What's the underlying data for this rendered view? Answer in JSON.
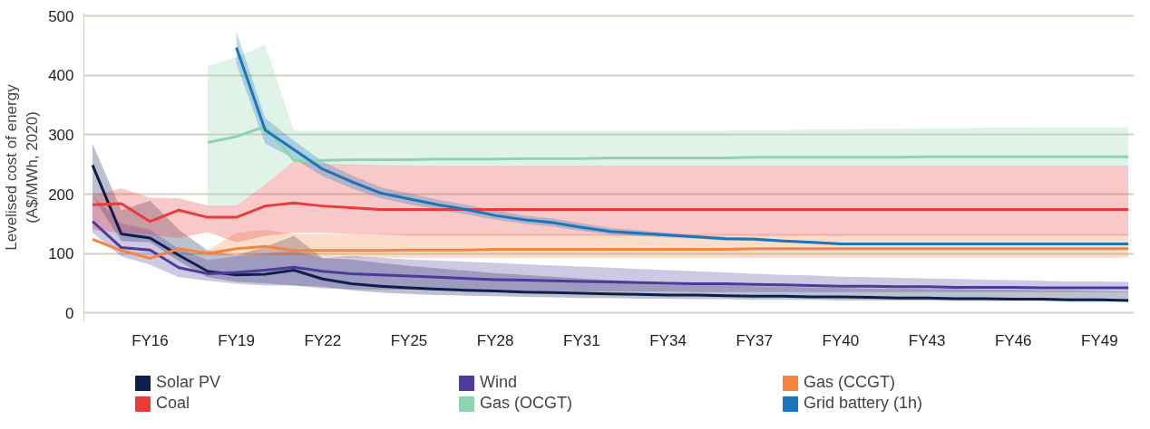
{
  "chart_data": {
    "type": "line",
    "ylabel": "Levelised cost of energy\n(A$/MWh, 2020)",
    "categories": [
      null,
      null,
      "FY16",
      null,
      null,
      "FY19",
      null,
      null,
      "FY22",
      null,
      null,
      "FY25",
      null,
      null,
      "FY28",
      null,
      null,
      "FY31",
      null,
      null,
      "FY34",
      null,
      null,
      "FY37",
      null,
      null,
      "FY40",
      null,
      null,
      "FY43",
      null,
      null,
      "FY46",
      null,
      null,
      "FY49",
      null
    ],
    "ylim": [
      -15,
      505
    ],
    "yticks": [
      0,
      100,
      200,
      300,
      400,
      500
    ],
    "grid": "y",
    "legend": "bottom",
    "marker": "none",
    "line_style": "solid",
    "series": [
      {
        "name": "Solar PV",
        "color": "#0d1f4d",
        "values": [
          249,
          133,
          126,
          97,
          70,
          64,
          65,
          72,
          57,
          49,
          45,
          42,
          40,
          38,
          37,
          35,
          34,
          33,
          32,
          31,
          30,
          30,
          29,
          28,
          28,
          27,
          27,
          26,
          25,
          25,
          24,
          24,
          23,
          23,
          22,
          22,
          21
        ],
        "lower": [
          197,
          121,
          119,
          87,
          60,
          52,
          50,
          46,
          44,
          38,
          34,
          32,
          30,
          29,
          28,
          27,
          26,
          25,
          25,
          24,
          24,
          23,
          23,
          22,
          22,
          22,
          21,
          21,
          21,
          21,
          20,
          20,
          20,
          20,
          19,
          19,
          19
        ],
        "upper": [
          285,
          173,
          189,
          140,
          105,
          97,
          111,
          130,
          92,
          90,
          84,
          79,
          75,
          71,
          67,
          64,
          61,
          58,
          55,
          53,
          51,
          49,
          47,
          45,
          44,
          43,
          42,
          41,
          41,
          40,
          40,
          39,
          39,
          38,
          38,
          37,
          36
        ]
      },
      {
        "name": "Wind",
        "color": "#4f3a9a",
        "values": [
          154,
          110,
          106,
          76,
          66,
          68,
          72,
          77,
          70,
          66,
          64,
          62,
          60,
          58,
          56,
          55,
          54,
          53,
          52,
          51,
          50,
          49,
          49,
          48,
          47,
          46,
          45,
          45,
          44,
          44,
          43,
          43,
          43,
          42,
          42,
          42,
          42
        ],
        "lower": [
          135,
          95,
          81,
          60,
          54,
          49,
          46,
          46,
          41,
          40,
          39,
          39,
          38,
          38,
          37,
          37,
          37,
          36,
          36,
          36,
          36,
          35,
          35,
          35,
          35,
          35,
          35,
          35,
          35,
          35,
          35,
          35,
          35,
          35,
          35,
          35,
          35
        ],
        "upper": [
          197,
          151,
          140,
          108,
          89,
          95,
          100,
          105,
          92,
          96,
          93,
          90,
          88,
          86,
          84,
          82,
          80,
          78,
          76,
          74,
          72,
          70,
          68,
          66,
          64,
          63,
          61,
          60,
          59,
          58,
          57,
          56,
          55,
          54,
          53,
          53,
          52
        ]
      },
      {
        "name": "Gas (CCGT)",
        "color": "#f5843f",
        "values": [
          124,
          105,
          92,
          108,
          100,
          108,
          112,
          105,
          105,
          105,
          105,
          106,
          106,
          106,
          107,
          107,
          107,
          107,
          107,
          107,
          107,
          107,
          107,
          108,
          108,
          108,
          108,
          108,
          108,
          108,
          108,
          108,
          108,
          108,
          108,
          108,
          108
        ],
        "lower": [
          null,
          null,
          null,
          null,
          97,
          95,
          95,
          94,
          93,
          93,
          93,
          93,
          93,
          93,
          93,
          93,
          93,
          93,
          93,
          93,
          93,
          93,
          93,
          93,
          93,
          93,
          93,
          93,
          93,
          93,
          93,
          93,
          93,
          93,
          93,
          93,
          93
        ],
        "upper": [
          null,
          null,
          null,
          null,
          105,
          135,
          140,
          133,
          133,
          133,
          133,
          133,
          133,
          133,
          133,
          133,
          133,
          133,
          133,
          133,
          133,
          133,
          133,
          133,
          133,
          133,
          133,
          133,
          133,
          133,
          133,
          133,
          133,
          133,
          133,
          133,
          133
        ]
      },
      {
        "name": "Coal",
        "color": "#ea3a3c",
        "values": [
          182,
          184,
          154,
          173,
          161,
          161,
          180,
          185,
          180,
          177,
          174,
          174,
          174,
          174,
          174,
          174,
          174,
          174,
          174,
          174,
          174,
          174,
          174,
          174,
          174,
          174,
          174,
          174,
          174,
          174,
          174,
          174,
          174,
          174,
          174,
          174,
          174
        ],
        "lower": [
          140,
          135,
          132,
          126,
          136,
          119,
          130,
          135,
          135,
          133,
          132,
          130,
          130,
          130,
          130,
          130,
          130,
          130,
          130,
          130,
          130,
          130,
          130,
          130,
          130,
          130,
          130,
          130,
          130,
          130,
          130,
          130,
          130,
          130,
          130,
          130,
          130
        ],
        "upper": [
          197,
          210,
          194,
          193,
          181,
          181,
          216,
          256,
          251,
          250,
          249,
          248,
          248,
          248,
          248,
          248,
          248,
          248,
          248,
          248,
          248,
          248,
          248,
          248,
          248,
          248,
          248,
          248,
          248,
          248,
          248,
          248,
          248,
          248,
          248,
          248,
          248
        ]
      },
      {
        "name": "Gas (OCGT)",
        "color": "#8fd3b0",
        "values": [
          null,
          null,
          null,
          null,
          287,
          297,
          314,
          257,
          257,
          258,
          258,
          258,
          259,
          259,
          259,
          260,
          260,
          260,
          261,
          261,
          261,
          261,
          261,
          262,
          262,
          262,
          262,
          262,
          262,
          263,
          263,
          263,
          263,
          263,
          263,
          263,
          263
        ],
        "lower": [
          null,
          null,
          null,
          null,
          181,
          181,
          216,
          256,
          250,
          248,
          248,
          248,
          248,
          248,
          248,
          248,
          248,
          248,
          248,
          248,
          248,
          248,
          248,
          248,
          248,
          248,
          248,
          248,
          248,
          248,
          248,
          248,
          248,
          248,
          248,
          248,
          248
        ],
        "upper": [
          null,
          null,
          null,
          null,
          416,
          431,
          452,
          307,
          307,
          307,
          307,
          307,
          307,
          307,
          307,
          307,
          307,
          307,
          307,
          307,
          307,
          307,
          307,
          308,
          308,
          309,
          309,
          310,
          310,
          311,
          311,
          312,
          312,
          313,
          313,
          313,
          313
        ]
      },
      {
        "name": "Grid battery (1h)",
        "color": "#1b75bb",
        "values": [
          null,
          null,
          null,
          null,
          null,
          447,
          308,
          275,
          242,
          221,
          202,
          192,
          182,
          174,
          164,
          157,
          152,
          144,
          137,
          134,
          131,
          128,
          125,
          124,
          121,
          119,
          116,
          116,
          116,
          116,
          116,
          116,
          116,
          116,
          116,
          116,
          116
        ],
        "lower": [
          null,
          null,
          null,
          null,
          null,
          420,
          285,
          260,
          230,
          210,
          193,
          183,
          174,
          166,
          157,
          150,
          145,
          138,
          132,
          129,
          127,
          125,
          122,
          121,
          119,
          117,
          115,
          115,
          115,
          115,
          115,
          115,
          115,
          115,
          115,
          115,
          115
        ],
        "upper": [
          null,
          null,
          null,
          null,
          null,
          474,
          328,
          290,
          255,
          232,
          212,
          201,
          191,
          182,
          172,
          164,
          159,
          151,
          143,
          139,
          135,
          131,
          128,
          127,
          123,
          121,
          117,
          117,
          117,
          117,
          117,
          117,
          117,
          117,
          117,
          117,
          117
        ]
      }
    ]
  }
}
